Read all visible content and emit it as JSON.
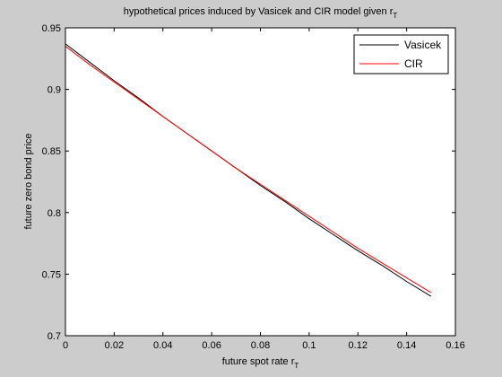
{
  "chart_data": {
    "type": "line",
    "title": "hypothetical prices induced by Vasicek and CIR model given r",
    "title_subscript": "T",
    "xlabel": "future spot rate r",
    "xlabel_subscript": "T",
    "ylabel": "future zero bond price",
    "xlim": [
      0,
      0.16
    ],
    "ylim": [
      0.7,
      0.95
    ],
    "xticks": [
      0,
      0.02,
      0.04,
      0.06,
      0.08,
      0.1,
      0.12,
      0.14,
      0.16
    ],
    "xtick_labels": [
      "0",
      "0.02",
      "0.04",
      "0.06",
      "0.08",
      "0.1",
      "0.12",
      "0.14",
      "0.16"
    ],
    "yticks": [
      0.7,
      0.75,
      0.8,
      0.85,
      0.9,
      0.95
    ],
    "ytick_labels": [
      "0.7",
      "0.75",
      "0.8",
      "0.85",
      "0.9",
      "0.95"
    ],
    "grid": false,
    "legend_position": "top-right",
    "x": [
      0,
      0.01,
      0.02,
      0.03,
      0.04,
      0.05,
      0.06,
      0.07,
      0.08,
      0.09,
      0.1,
      0.11,
      0.12,
      0.13,
      0.14,
      0.15
    ],
    "series": [
      {
        "name": "Vasicek",
        "color": "#000000",
        "values": [
          0.937,
          0.922,
          0.907,
          0.893,
          0.878,
          0.864,
          0.85,
          0.836,
          0.822,
          0.809,
          0.795,
          0.782,
          0.769,
          0.757,
          0.744,
          0.732
        ]
      },
      {
        "name": "CIR",
        "color": "#ff0000",
        "values": [
          0.935,
          0.92,
          0.906,
          0.892,
          0.878,
          0.864,
          0.85,
          0.836,
          0.823,
          0.81,
          0.797,
          0.784,
          0.771,
          0.759,
          0.747,
          0.735
        ]
      }
    ]
  }
}
